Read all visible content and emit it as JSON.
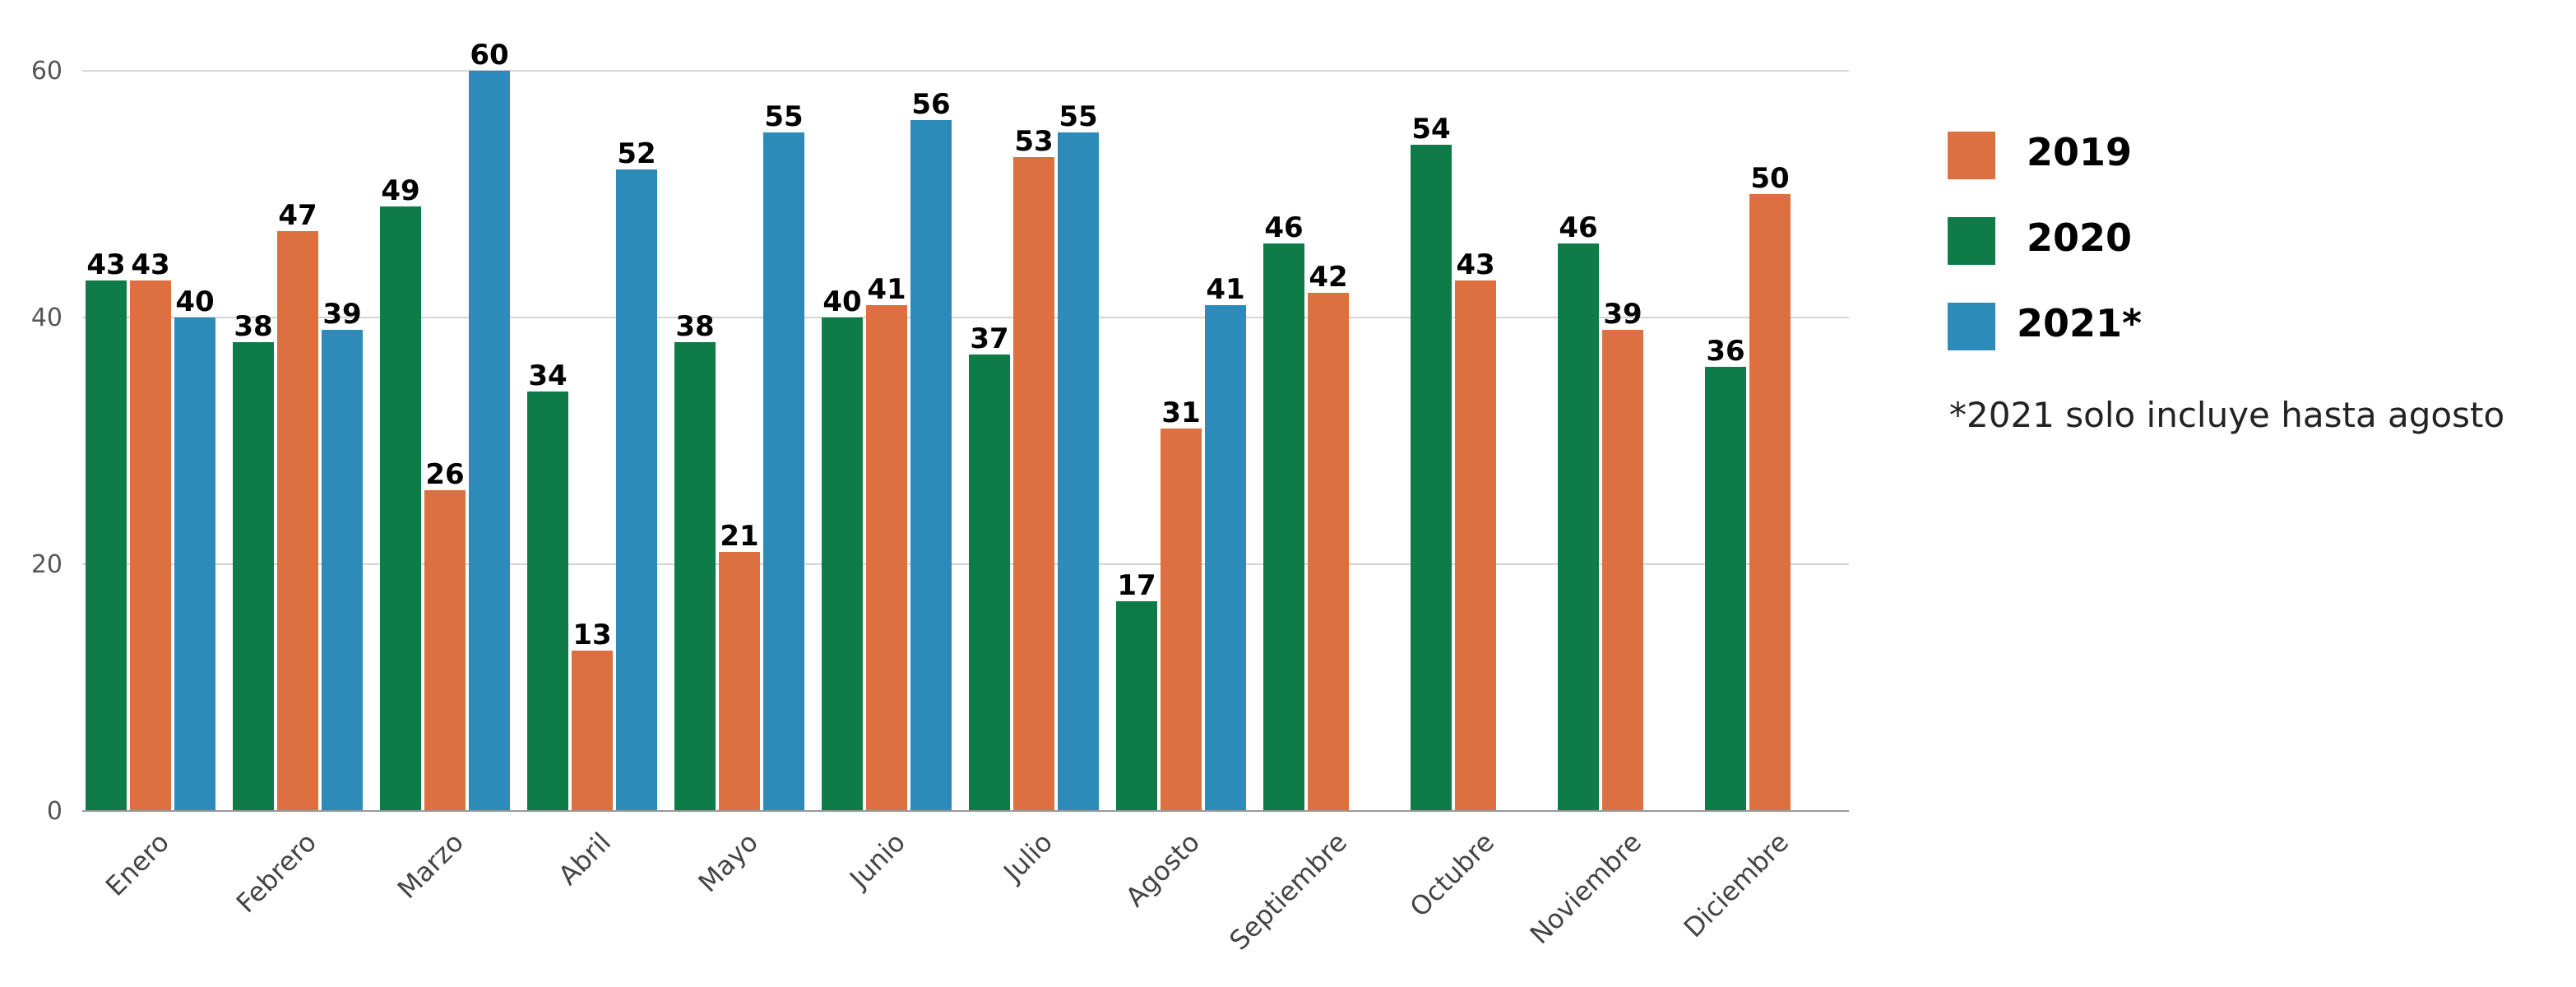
{
  "chart_data": {
    "type": "bar",
    "categories": [
      "Enero",
      "Febrero",
      "Marzo",
      "Abril",
      "Mayo",
      "Junio",
      "Julio",
      "Agosto",
      "Septiembre",
      "Octubre",
      "Noviembre",
      "Diciembre"
    ],
    "series": [
      {
        "name": "2020",
        "color": "#0f7b48",
        "values": [
          43,
          38,
          49,
          34,
          38,
          40,
          37,
          17,
          46,
          54,
          46,
          36
        ]
      },
      {
        "name": "2019",
        "color": "#dc7040",
        "values": [
          43,
          47,
          26,
          13,
          21,
          41,
          53,
          31,
          42,
          43,
          39,
          50
        ]
      },
      {
        "name": "2021*",
        "color": "#2d8bba",
        "values": [
          40,
          39,
          60,
          52,
          55,
          56,
          55,
          41,
          null,
          null,
          null,
          null
        ]
      }
    ],
    "yticks": [
      "0",
      "20",
      "40",
      "60"
    ],
    "ylim": [
      0,
      60
    ],
    "grid": true,
    "legend_position": "right",
    "title": "",
    "xlabel": "",
    "ylabel": ""
  },
  "legend": {
    "items": [
      {
        "label": "2019",
        "color": "#dc7040"
      },
      {
        "label": "2020",
        "color": "#0f7b48"
      },
      {
        "label": "2021*",
        "color": "#2d8bba"
      }
    ],
    "note": "*2021 solo incluye hasta agosto"
  }
}
